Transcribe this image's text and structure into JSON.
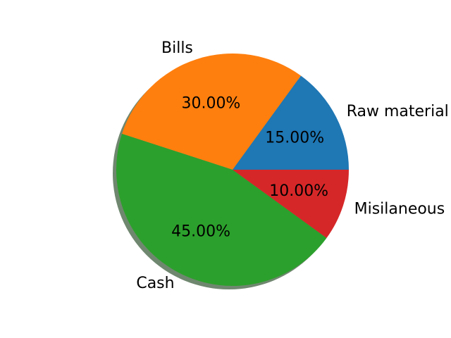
{
  "chart_data": {
    "type": "pie",
    "slices": [
      {
        "label": "Raw material",
        "value": 15,
        "pct_label": "15.00%",
        "color": "#1f77b4"
      },
      {
        "label": "Bills",
        "value": 30,
        "pct_label": "30.00%",
        "color": "#ff7f0e"
      },
      {
        "label": "Cash",
        "value": 45,
        "pct_label": "45.00%",
        "color": "#2ca02c"
      },
      {
        "label": "Misilaneous",
        "value": 10,
        "pct_label": "10.00%",
        "color": "#d62728"
      }
    ],
    "start_angle": 0,
    "direction": "counterclockwise",
    "shadow": true,
    "shadow_color": "#5f7a5f"
  }
}
